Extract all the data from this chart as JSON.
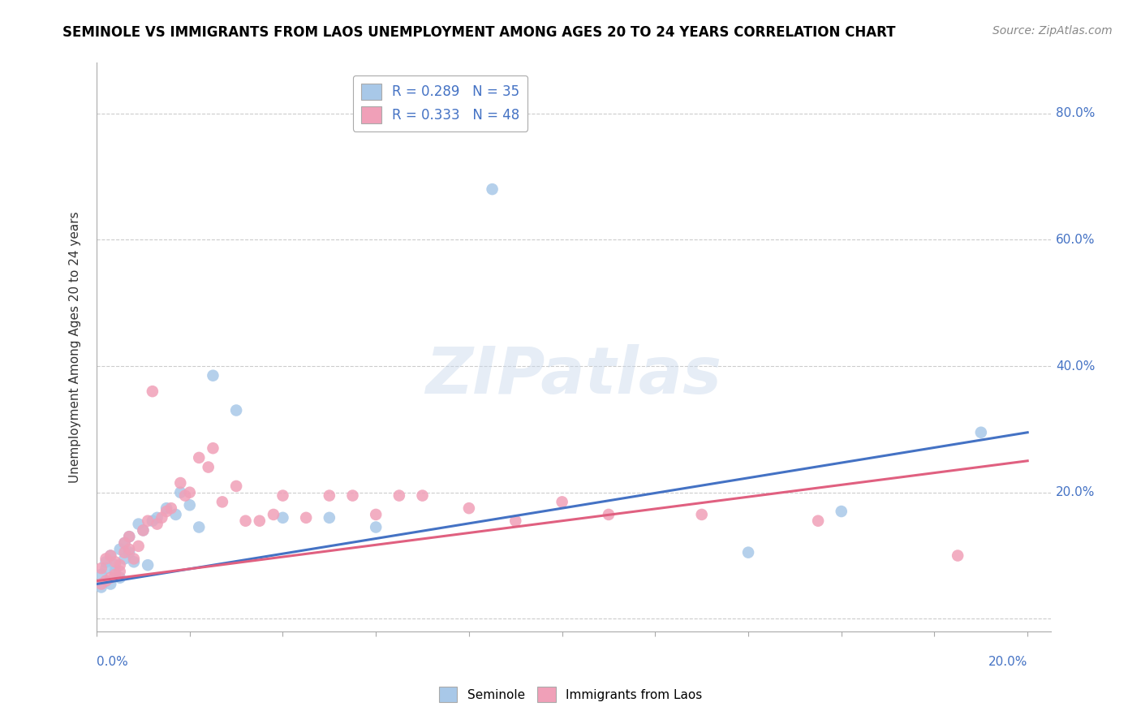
{
  "title": "SEMINOLE VS IMMIGRANTS FROM LAOS UNEMPLOYMENT AMONG AGES 20 TO 24 YEARS CORRELATION CHART",
  "source": "Source: ZipAtlas.com",
  "ylabel": "Unemployment Among Ages 20 to 24 years",
  "xlim": [
    0.0,
    0.205
  ],
  "ylim": [
    -0.02,
    0.88
  ],
  "watermark": "ZIPatlas",
  "legend_blue_r": "0.289",
  "legend_blue_n": "35",
  "legend_pink_r": "0.333",
  "legend_pink_n": "48",
  "blue_color": "#a8c8e8",
  "pink_color": "#f0a0b8",
  "blue_line_color": "#4472c4",
  "pink_line_color": "#e06080",
  "title_fontsize": 12,
  "source_fontsize": 10,
  "seminole_x": [
    0.001,
    0.001,
    0.002,
    0.002,
    0.002,
    0.003,
    0.003,
    0.004,
    0.004,
    0.005,
    0.005,
    0.006,
    0.006,
    0.007,
    0.007,
    0.008,
    0.009,
    0.01,
    0.011,
    0.012,
    0.013,
    0.015,
    0.017,
    0.018,
    0.02,
    0.022,
    0.025,
    0.03,
    0.04,
    0.05,
    0.06,
    0.085,
    0.14,
    0.16,
    0.19
  ],
  "seminole_y": [
    0.05,
    0.07,
    0.06,
    0.08,
    0.09,
    0.1,
    0.055,
    0.075,
    0.085,
    0.11,
    0.065,
    0.095,
    0.12,
    0.105,
    0.13,
    0.09,
    0.15,
    0.14,
    0.085,
    0.155,
    0.16,
    0.175,
    0.165,
    0.2,
    0.18,
    0.145,
    0.385,
    0.33,
    0.16,
    0.16,
    0.145,
    0.68,
    0.105,
    0.17,
    0.295
  ],
  "laos_x": [
    0.001,
    0.001,
    0.002,
    0.002,
    0.003,
    0.003,
    0.004,
    0.004,
    0.005,
    0.005,
    0.006,
    0.006,
    0.007,
    0.007,
    0.008,
    0.009,
    0.01,
    0.011,
    0.012,
    0.013,
    0.014,
    0.015,
    0.016,
    0.018,
    0.019,
    0.02,
    0.022,
    0.024,
    0.025,
    0.027,
    0.03,
    0.032,
    0.035,
    0.038,
    0.04,
    0.045,
    0.05,
    0.055,
    0.06,
    0.065,
    0.07,
    0.08,
    0.09,
    0.1,
    0.11,
    0.13,
    0.155,
    0.185
  ],
  "laos_y": [
    0.055,
    0.08,
    0.06,
    0.095,
    0.065,
    0.1,
    0.07,
    0.09,
    0.075,
    0.085,
    0.105,
    0.12,
    0.11,
    0.13,
    0.095,
    0.115,
    0.14,
    0.155,
    0.36,
    0.15,
    0.16,
    0.17,
    0.175,
    0.215,
    0.195,
    0.2,
    0.255,
    0.24,
    0.27,
    0.185,
    0.21,
    0.155,
    0.155,
    0.165,
    0.195,
    0.16,
    0.195,
    0.195,
    0.165,
    0.195,
    0.195,
    0.175,
    0.155,
    0.185,
    0.165,
    0.165,
    0.155,
    0.1
  ],
  "blue_line_x": [
    0.0,
    0.2
  ],
  "blue_line_y": [
    0.055,
    0.295
  ],
  "pink_line_x": [
    0.0,
    0.2
  ],
  "pink_line_y": [
    0.06,
    0.25
  ]
}
